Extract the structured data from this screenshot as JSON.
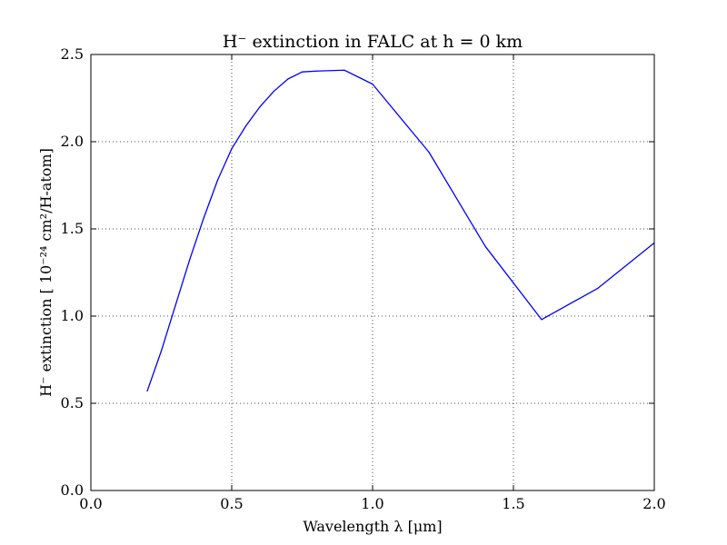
{
  "chart_data": {
    "type": "line",
    "title": "H⁻ extinction in FALC at h = 0 km",
    "xlabel": "Wavelength λ [μm]",
    "ylabel": "H⁻ extinction [ 10⁻²⁴ cm²/H-atom]",
    "xlim": [
      0.0,
      2.0
    ],
    "ylim": [
      0.0,
      2.5
    ],
    "xticks": [
      "0.0",
      "0.5",
      "1.0",
      "1.5",
      "2.0"
    ],
    "yticks": [
      "0.0",
      "0.5",
      "1.0",
      "1.5",
      "2.0",
      "2.5"
    ],
    "grid": true,
    "series": [
      {
        "color": "#0000ff",
        "x": [
          0.2,
          0.25,
          0.3,
          0.35,
          0.4,
          0.45,
          0.5,
          0.55,
          0.6,
          0.65,
          0.7,
          0.75,
          0.8,
          0.9,
          1.0,
          1.2,
          1.4,
          1.6,
          1.8,
          2.0
        ],
        "y": [
          0.57,
          0.8,
          1.06,
          1.32,
          1.56,
          1.78,
          1.96,
          2.09,
          2.2,
          2.29,
          2.36,
          2.4,
          2.405,
          2.41,
          2.33,
          1.94,
          1.4,
          0.98,
          1.16,
          1.42
        ]
      }
    ]
  }
}
